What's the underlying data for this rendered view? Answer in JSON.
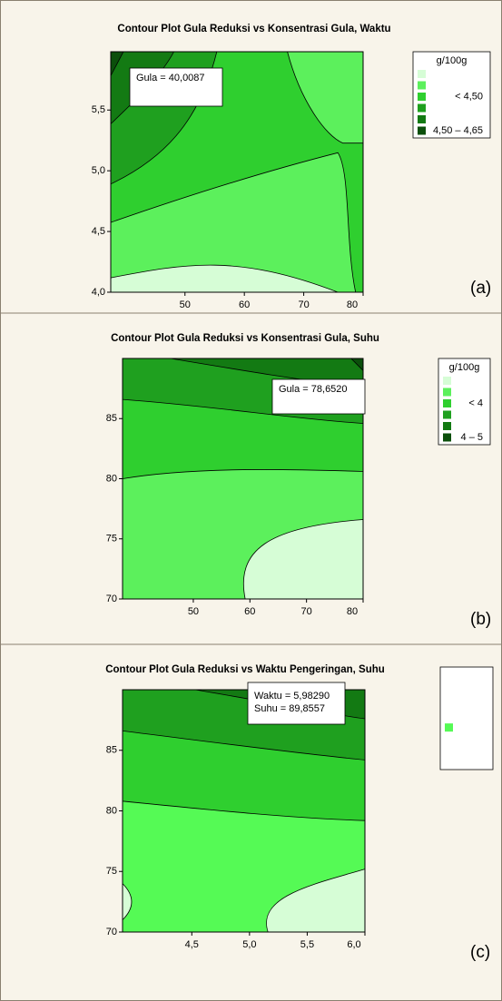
{
  "chart_data": [
    {
      "type": "contour",
      "title": "Contour Plot Gula Reduksi vs Konsentrasi Gula, Waktu",
      "xlim": [
        37.5,
        80
      ],
      "xticks": [
        50,
        60,
        70,
        80
      ],
      "ylim": [
        4.0,
        5.98
      ],
      "yticks": [
        {
          "value": 4.0,
          "label": "4,0"
        },
        {
          "value": 4.5,
          "label": "4,5"
        },
        {
          "value": 5.0,
          "label": "5,0"
        },
        {
          "value": 5.5,
          "label": "5,5"
        }
      ],
      "level_colors": [
        "#d6fdd6",
        "#5cf05c",
        "#2fcf2f",
        "#1fa01f",
        "#137a13",
        "#0b4f0b"
      ],
      "legend": {
        "title": "g/100g",
        "labels": [
          "< 4,50",
          "4,50 – 4,65"
        ],
        "colors": [
          "#d6fdd6",
          "#5cf05c",
          "#2fcf2f",
          "#1fa01f",
          "#137a13",
          "#0b4f0b"
        ]
      },
      "annotation": [
        "Gula = 40,0087"
      ],
      "panel_label": "(a)"
    },
    {
      "type": "contour",
      "title": "Contour Plot Gula Reduksi vs Konsentrasi Gula, Suhu",
      "xlim": [
        37.5,
        80
      ],
      "xticks": [
        50,
        60,
        70,
        80
      ],
      "ylim": [
        70,
        90
      ],
      "yticks": [
        70,
        75,
        80,
        85
      ],
      "level_colors": [
        "#d6fdd6",
        "#5cf05c",
        "#2fcf2f",
        "#1fa01f",
        "#137a13",
        "#0b4f0b"
      ],
      "legend": {
        "title": "g/100g",
        "labels": [
          "< 4",
          "4 – 5"
        ],
        "colors": [
          "#d6fdd6",
          "#5cf05c",
          "#2fcf2f",
          "#1fa01f",
          "#137a13",
          "#0b4f0b"
        ]
      },
      "annotation": [
        "Gula = 78,6520"
      ],
      "panel_label": "(b)"
    },
    {
      "type": "contour",
      "title": "Contour Plot Gula Reduksi vs Waktu Pengeringan, Suhu",
      "xlim": [
        3.9,
        6.0
      ],
      "xticks": [
        {
          "value": 4.5,
          "label": "4,5"
        },
        {
          "value": 5.0,
          "label": "5,0"
        },
        {
          "value": 5.5,
          "label": "5,5"
        },
        {
          "value": 6.0,
          "label": "6,0"
        }
      ],
      "ylim": [
        70,
        90
      ],
      "yticks": [
        70,
        75,
        80,
        85
      ],
      "level_colors": [
        "#d6fdd6",
        "#55fa55",
        "#2fcf2f",
        "#1fa01f",
        "#137a13",
        "#0b4f0b"
      ],
      "legend": {
        "colors": [
          "#55fa55"
        ]
      },
      "annotation": [
        "Waktu = 5,98290",
        "Suhu = 89,8557"
      ],
      "panel_label": "(c)"
    }
  ]
}
